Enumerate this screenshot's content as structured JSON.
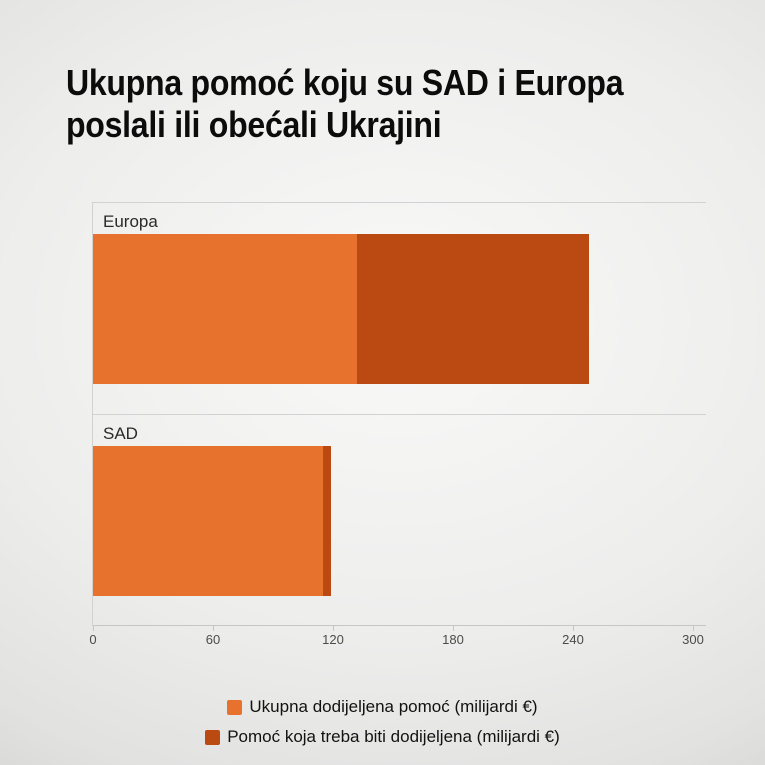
{
  "title": "Ukupna pomoć koju su SAD i Europa poslali ili obećali Ukrajini",
  "chart_data": {
    "type": "bar",
    "orientation": "horizontal",
    "stacked": true,
    "title": "Ukupna pomoć koju su SAD i Europa poslali ili obećali Ukrajini",
    "categories": [
      "Europa",
      "SAD"
    ],
    "series": [
      {
        "name": "Ukupna dodijeljena pomoć (milijardi €)",
        "color": "#e7722d",
        "values": [
          132,
          115
        ]
      },
      {
        "name": "Pomoć koja treba biti dodijeljena (milijardi €)",
        "color": "#bb4a12",
        "values": [
          116,
          4
        ]
      }
    ],
    "totals": [
      248,
      119
    ],
    "xlabel": "",
    "ylabel": "",
    "unit": "milijardi €",
    "xlim": [
      0,
      300
    ],
    "x_ticks": [
      "0",
      "60",
      "120",
      "180",
      "240",
      "300"
    ],
    "legend_position": "bottom",
    "grid": true
  }
}
